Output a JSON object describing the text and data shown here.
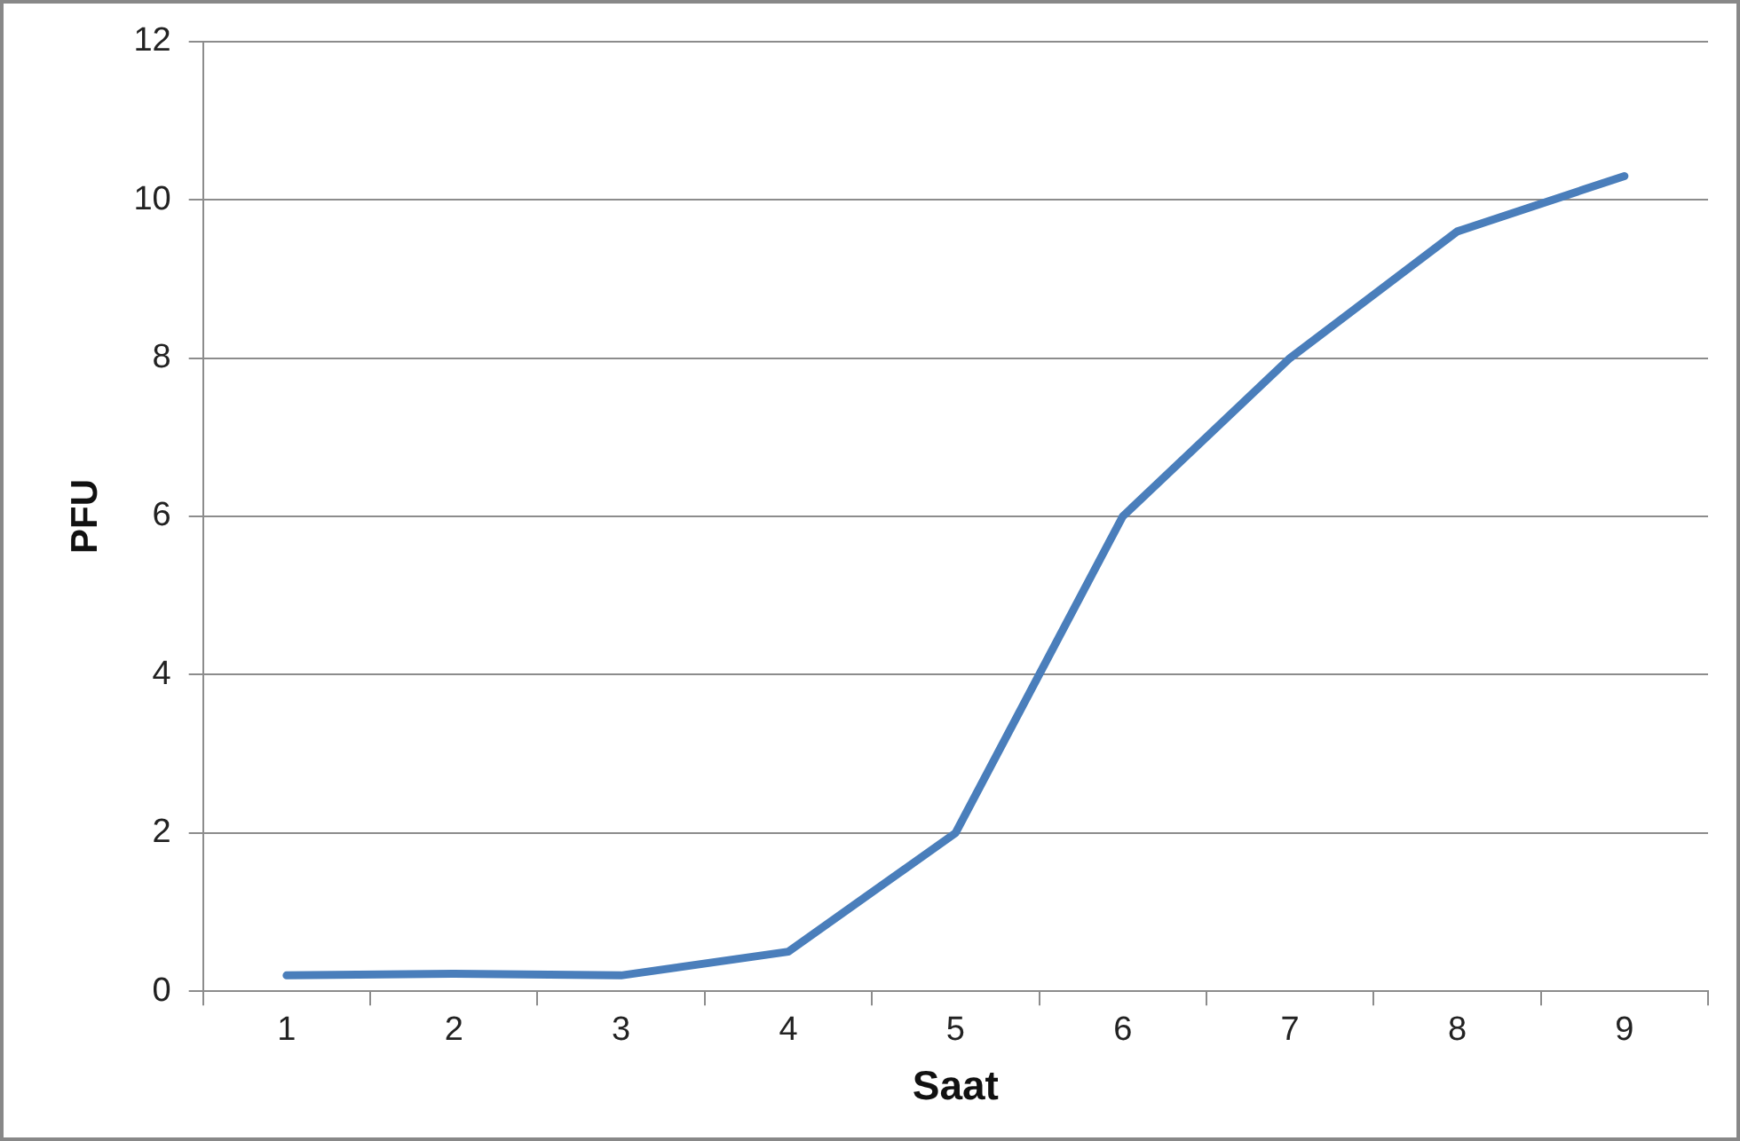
{
  "chart_data": {
    "type": "line",
    "xlabel": "Saat",
    "ylabel": "PFU",
    "categories": [
      "1",
      "2",
      "3",
      "4",
      "5",
      "6",
      "7",
      "8",
      "9"
    ],
    "series": [
      {
        "color": "#4a7ebb",
        "values": [
          0.2,
          0.22,
          0.2,
          0.5,
          2,
          6,
          8,
          9.6,
          10.3
        ]
      }
    ],
    "ylim": [
      0,
      12
    ],
    "yticks": [
      0,
      2,
      4,
      6,
      8,
      10,
      12
    ],
    "grid": "y",
    "legend": false,
    "marker": "none",
    "line_style": "solid"
  }
}
